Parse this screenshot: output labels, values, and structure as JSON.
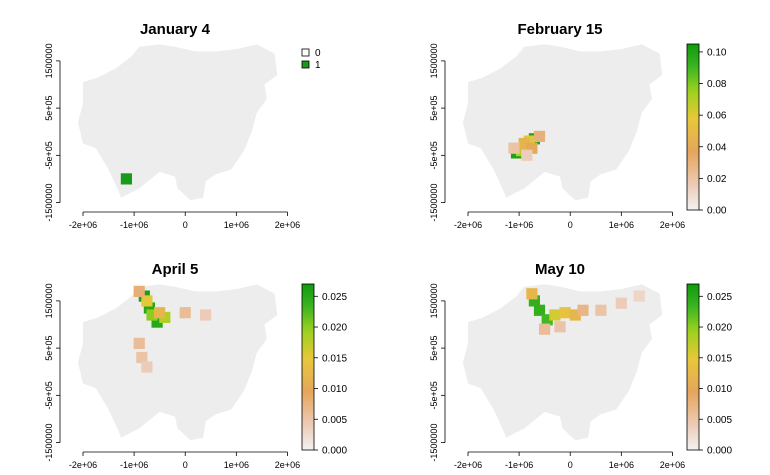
{
  "chart_data": [
    {
      "type": "heatmap",
      "title": "January 4",
      "x_ticks": [
        "-2e+06",
        "-1e+06",
        "0",
        "1e+06",
        "2e+06"
      ],
      "x_tick_values": [
        -2000000,
        -1000000,
        0,
        1000000,
        2000000
      ],
      "y_ticks": [
        "-1500000",
        "-5e+05",
        "5e+05",
        "1500000"
      ],
      "y_tick_values": [
        -1500000,
        -500000,
        500000,
        1500000
      ],
      "legend": {
        "kind": "categorical",
        "entries": [
          {
            "label": "0",
            "color": "#ffffff"
          },
          {
            "label": "1",
            "color": "#1a9a1a"
          }
        ]
      },
      "hotspots": [
        {
          "x": -1150000,
          "y": -1000000,
          "value": 1
        }
      ]
    },
    {
      "type": "heatmap",
      "title": "February 15",
      "x_ticks": [
        "-2e+06",
        "-1e+06",
        "0",
        "1e+06",
        "2e+06"
      ],
      "x_tick_values": [
        -2000000,
        -1000000,
        0,
        1000000,
        2000000
      ],
      "y_ticks": [
        "-1500000",
        "-5e+05",
        "5e+05",
        "1500000"
      ],
      "y_tick_values": [
        -1500000,
        -500000,
        500000,
        1500000
      ],
      "legend": {
        "kind": "continuous",
        "range": [
          0,
          0.105
        ],
        "ticks": [
          "0.00",
          "0.02",
          "0.04",
          "0.06",
          "0.08",
          "0.10"
        ],
        "tick_values": [
          0,
          0.02,
          0.04,
          0.06,
          0.08,
          0.1
        ]
      },
      "hotspots": [
        {
          "x": -1050000,
          "y": -450000,
          "value": 0.1
        },
        {
          "x": -700000,
          "y": -150000,
          "value": 0.1
        },
        {
          "x": -950000,
          "y": -400000,
          "value": 0.07
        },
        {
          "x": -850000,
          "y": -300000,
          "value": 0.06
        },
        {
          "x": -800000,
          "y": -200000,
          "value": 0.06
        },
        {
          "x": -900000,
          "y": -250000,
          "value": 0.045
        },
        {
          "x": -750000,
          "y": -350000,
          "value": 0.04
        },
        {
          "x": -600000,
          "y": -100000,
          "value": 0.03
        },
        {
          "x": -1100000,
          "y": -350000,
          "value": 0.02
        },
        {
          "x": -850000,
          "y": -500000,
          "value": 0.015
        }
      ]
    },
    {
      "type": "heatmap",
      "title": "April 5",
      "x_ticks": [
        "-2e+06",
        "-1e+06",
        "0",
        "1e+06",
        "2e+06"
      ],
      "x_tick_values": [
        -2000000,
        -1000000,
        0,
        1000000,
        2000000
      ],
      "y_ticks": [
        "-1500000",
        "-5e+05",
        "5e+05",
        "1500000"
      ],
      "y_tick_values": [
        -1500000,
        -500000,
        500000,
        1500000
      ],
      "legend": {
        "kind": "continuous",
        "range": [
          0,
          0.027
        ],
        "ticks": [
          "0.000",
          "0.005",
          "0.010",
          "0.015",
          "0.020",
          "0.025"
        ],
        "tick_values": [
          0,
          0.005,
          0.01,
          0.015,
          0.02,
          0.025
        ]
      },
      "hotspots": [
        {
          "x": -800000,
          "y": 1600000,
          "value": 0.026
        },
        {
          "x": -700000,
          "y": 1350000,
          "value": 0.025
        },
        {
          "x": -550000,
          "y": 1050000,
          "value": 0.025
        },
        {
          "x": -650000,
          "y": 1200000,
          "value": 0.02
        },
        {
          "x": -400000,
          "y": 1150000,
          "value": 0.018
        },
        {
          "x": -750000,
          "y": 1500000,
          "value": 0.015
        },
        {
          "x": -500000,
          "y": 1250000,
          "value": 0.012
        },
        {
          "x": -900000,
          "y": 1700000,
          "value": 0.008
        },
        {
          "x": 0,
          "y": 1250000,
          "value": 0.006
        },
        {
          "x": 400000,
          "y": 1200000,
          "value": 0.004
        },
        {
          "x": -900000,
          "y": 600000,
          "value": 0.006
        },
        {
          "x": -850000,
          "y": 300000,
          "value": 0.005
        },
        {
          "x": -750000,
          "y": 100000,
          "value": 0.004
        }
      ]
    },
    {
      "type": "heatmap",
      "title": "May 10",
      "x_ticks": [
        "-2e+06",
        "-1e+06",
        "0",
        "1e+06",
        "2e+06"
      ],
      "x_tick_values": [
        -2000000,
        -1000000,
        0,
        1000000,
        2000000
      ],
      "y_ticks": [
        "-1500000",
        "-5e+05",
        "5e+05",
        "1500000"
      ],
      "y_tick_values": [
        -1500000,
        -500000,
        500000,
        1500000
      ],
      "legend": {
        "kind": "continuous",
        "range": [
          0,
          0.027
        ],
        "ticks": [
          "0.000",
          "0.005",
          "0.010",
          "0.015",
          "0.020",
          "0.025"
        ],
        "tick_values": [
          0,
          0.005,
          0.01,
          0.015,
          0.02,
          0.025
        ]
      },
      "hotspots": [
        {
          "x": -700000,
          "y": 1500000,
          "value": 0.024
        },
        {
          "x": -600000,
          "y": 1300000,
          "value": 0.024
        },
        {
          "x": -450000,
          "y": 1100000,
          "value": 0.023
        },
        {
          "x": -750000,
          "y": 1650000,
          "value": 0.012
        },
        {
          "x": -300000,
          "y": 1200000,
          "value": 0.016
        },
        {
          "x": -100000,
          "y": 1250000,
          "value": 0.014
        },
        {
          "x": 100000,
          "y": 1200000,
          "value": 0.012
        },
        {
          "x": 250000,
          "y": 1300000,
          "value": 0.007
        },
        {
          "x": 600000,
          "y": 1300000,
          "value": 0.005
        },
        {
          "x": 1000000,
          "y": 1450000,
          "value": 0.004
        },
        {
          "x": 1350000,
          "y": 1600000,
          "value": 0.003
        },
        {
          "x": -500000,
          "y": 900000,
          "value": 0.006
        },
        {
          "x": -200000,
          "y": 950000,
          "value": 0.005
        }
      ]
    }
  ]
}
